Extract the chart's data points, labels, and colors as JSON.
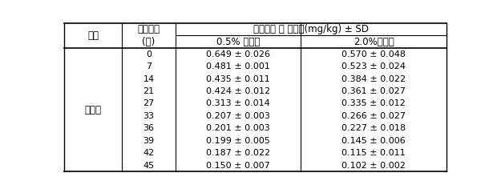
{
  "crop_label": "시금치",
  "header_col0": "작물",
  "header_col1_row0": "경과일수",
  "header_col1_row1": "(일)",
  "header_span": "토양시료 중 잔류량(mg/kg) ± SD",
  "header_col2": "0.5% 처리구",
  "header_col3": "2.0%처리구",
  "days": [
    0,
    7,
    14,
    21,
    27,
    33,
    36,
    39,
    42,
    45
  ],
  "col1_values": [
    "0.649 ± 0.026",
    "0.481 ± 0.001",
    "0.435 ± 0.011",
    "0.424 ± 0.012",
    "0.313 ± 0.014",
    "0.207 ± 0.003",
    "0.201 ± 0.003",
    "0.199 ± 0.005",
    "0.187 ± 0.022",
    "0.150 ± 0.007"
  ],
  "col2_values": [
    "0.570 ± 0.048",
    "0.523 ± 0.024",
    "0.384 ± 0.022",
    "0.361 ± 0.027",
    "0.335 ± 0.012",
    "0.266 ± 0.027",
    "0.227 ± 0.018",
    "0.145 ± 0.006",
    "0.115 ± 0.011",
    "0.102 ± 0.002"
  ],
  "figsize": [
    6.2,
    2.41
  ],
  "dpi": 100,
  "font_size_header": 8.5,
  "font_size_data": 8.0,
  "c0l": 0.005,
  "c0r": 0.155,
  "c1l": 0.155,
  "c1r": 0.295,
  "c2l": 0.295,
  "c2r": 0.62,
  "c3l": 0.62,
  "c3r": 0.998
}
